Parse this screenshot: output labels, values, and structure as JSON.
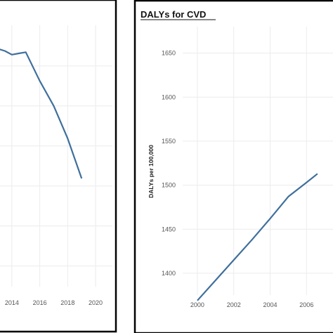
{
  "chart_data": [
    {
      "type": "line",
      "title": "",
      "xlabel": "",
      "ylabel": "",
      "x_ticks": [
        "2014",
        "2016",
        "2018",
        "2020"
      ],
      "xlim": [
        2012.9,
        2020.4
      ],
      "ylim": [
        0,
        1
      ],
      "grid": true,
      "series": [
        {
          "color": "#3f6f9c",
          "x": [
            2012.9,
            2013.5,
            2014,
            2014.5,
            2015,
            2016,
            2017,
            2018,
            2019
          ],
          "y": [
            0.93,
            0.92,
            0.905,
            0.91,
            0.915,
            0.8,
            0.7,
            0.57,
            0.41
          ]
        }
      ]
    },
    {
      "type": "line",
      "title": "DALYs for CVD",
      "xlabel": "",
      "ylabel": "DALYs per 100,000",
      "x_ticks": [
        "2000",
        "2002",
        "2004",
        "2006"
      ],
      "y_ticks": [
        "1400",
        "1450",
        "1500",
        "1550",
        "1600",
        "1650"
      ],
      "xlim": [
        1999,
        2007.3
      ],
      "ylim": [
        1380,
        1680
      ],
      "grid": true,
      "series": [
        {
          "color": "#3f6f9c",
          "x": [
            2000,
            2001,
            2002,
            2003,
            2004,
            2005,
            2006,
            2006.6
          ],
          "y": [
            1369,
            1392,
            1415,
            1438,
            1462,
            1487,
            1503,
            1513
          ]
        }
      ]
    }
  ]
}
